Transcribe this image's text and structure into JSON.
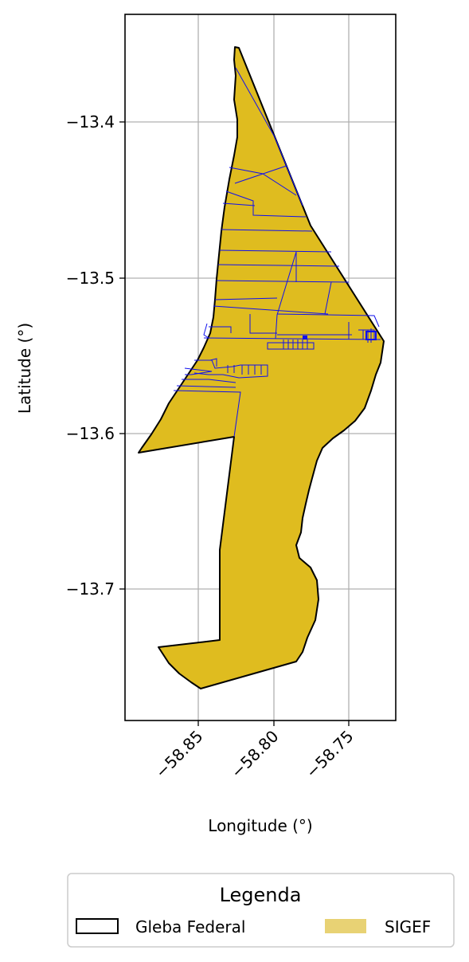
{
  "map": {
    "xlabel": "Longitude (°)",
    "ylabel": "Latitude (°)",
    "xticks": [
      "−58.85",
      "−58.80",
      "−58.75"
    ],
    "yticks": [
      "−13.4",
      "−13.5",
      "−13.6",
      "−13.7"
    ],
    "grid": true,
    "xlim": [
      -58.9,
      -58.72
    ],
    "ylim": [
      -13.78,
      -13.33
    ]
  },
  "legend": {
    "title": "Legenda",
    "items": [
      {
        "label": "Gleba Federal",
        "style": "outline",
        "color": "#000000"
      },
      {
        "label": "SIGEF",
        "style": "fill",
        "color": "#e8d274"
      }
    ],
    "placement": "bottom-center"
  },
  "colors": {
    "gleba_fill": "#dfbc1f",
    "gleba_edge": "#000000",
    "sigef_edge": "#1010ee",
    "grid": "#b0b0b0"
  }
}
